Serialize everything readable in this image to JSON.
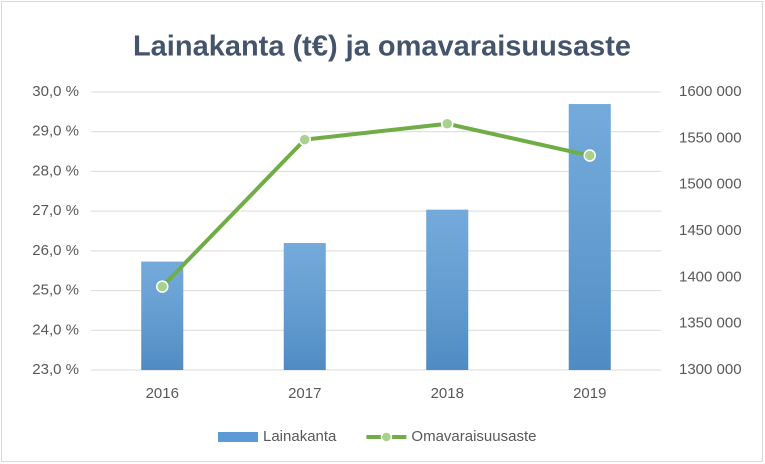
{
  "chart_data": {
    "type": "combo",
    "title": "Lainakanta (t€) ja omavaraisuusaste",
    "categories": [
      "2016",
      "2017",
      "2018",
      "2019"
    ],
    "series": [
      {
        "name": "Lainakanta",
        "type": "bar",
        "axis": "y2",
        "color": "#5b9bd5",
        "values": [
          1417000,
          1437000,
          1473000,
          1587000
        ]
      },
      {
        "name": "Omavaraisuusaste",
        "type": "line",
        "color": "#70ad47",
        "values": [
          25.1,
          28.8,
          29.2,
          28.4
        ]
      }
    ],
    "ylim": [
      23,
      30
    ],
    "yticks": [
      {
        "value": 23,
        "label": "23,0 %"
      },
      {
        "value": 24,
        "label": "24,0 %"
      },
      {
        "value": 25,
        "label": "25,0 %"
      },
      {
        "value": 26,
        "label": "26,0 %"
      },
      {
        "value": 27,
        "label": "27,0 %"
      },
      {
        "value": 28,
        "label": "28,0 %"
      },
      {
        "value": 29,
        "label": "29,0 %"
      },
      {
        "value": 30,
        "label": "30,0 %"
      }
    ],
    "y2lim": [
      1300000,
      1600000
    ],
    "y2ticks": [
      {
        "value": 1300000,
        "label": "1300 000"
      },
      {
        "value": 1350000,
        "label": "1350 000"
      },
      {
        "value": 1400000,
        "label": "1400 000"
      },
      {
        "value": 1450000,
        "label": "1450 000"
      },
      {
        "value": 1500000,
        "label": "1500 000"
      },
      {
        "value": 1550000,
        "label": "1550 000"
      },
      {
        "value": 1600000,
        "label": "1600 000"
      }
    ],
    "grid": true,
    "legend": "bottom"
  }
}
